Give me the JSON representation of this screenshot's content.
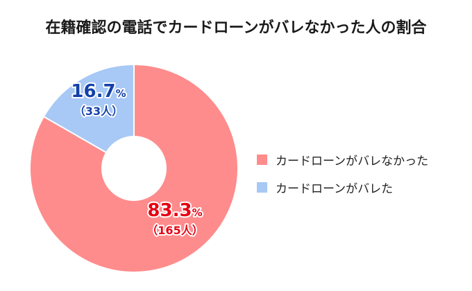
{
  "chart_data": {
    "type": "pie",
    "title": "在籍確認の電話でカードローンがバレなかった人の割合",
    "donut": true,
    "slices": [
      {
        "name": "カードローンがバレなかった",
        "percent": 83.3,
        "count": 165,
        "percent_label": "83.3",
        "count_label": "（165人）",
        "color": "#FF8C8C",
        "label_color": "#E60012"
      },
      {
        "name": "カードローンがバレた",
        "percent": 16.7,
        "count": 33,
        "percent_label": "16.7",
        "count_label": "（33人）",
        "color": "#A8C8F5",
        "label_color": "#1441A8"
      }
    ],
    "percent_unit": "%",
    "legend_position": "right"
  }
}
